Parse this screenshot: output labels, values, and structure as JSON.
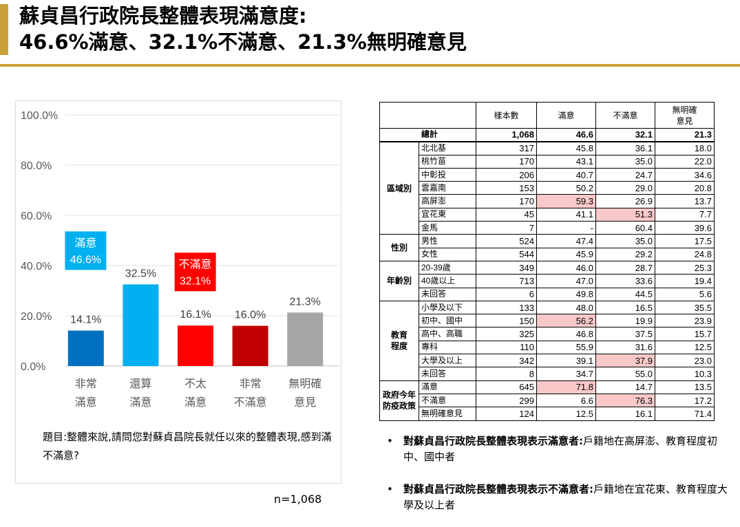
{
  "header": {
    "title_line1": "蘇貞昌行政院長整體表現滿意度:",
    "title_line2": "46.6%滿意、32.1%不滿意、21.3%無明確意見",
    "accent_color": "#c9a13b"
  },
  "chart_data": {
    "type": "bar",
    "categories": [
      [
        "非常",
        "滿意"
      ],
      [
        "還算",
        "滿意"
      ],
      [
        "不太",
        "滿意"
      ],
      [
        "非常",
        "不滿意"
      ],
      [
        "無明確",
        "意見"
      ]
    ],
    "values": [
      14.1,
      32.5,
      16.1,
      16.0,
      21.3
    ],
    "value_labels": [
      "14.1%",
      "32.5%",
      "16.1%",
      "16.0%",
      "21.3%"
    ],
    "colors": [
      "#0070c0",
      "#00b0f0",
      "#ff0000",
      "#c00000",
      "#a6a6a6"
    ],
    "ylim": [
      0,
      100
    ],
    "yticks": [
      "0.0%",
      "20.0%",
      "40.0%",
      "60.0%",
      "80.0%",
      "100.0%"
    ],
    "grid": true,
    "annotations": [
      {
        "label": "滿意",
        "value": "46.6%",
        "value_number": 46.6,
        "color": "#00b0f0"
      },
      {
        "label": "不滿意",
        "value": "32.1%",
        "value_number": 32.1,
        "color": "#ff0000"
      }
    ]
  },
  "question": "題目:整體來說,請問您對蘇貞昌院長就任以來的整體表現,感到滿不滿意?",
  "sample_note": "n=1,068",
  "table": {
    "headers": [
      "樣本數",
      "滿意",
      "不滿意",
      [
        "無明確",
        "意見"
      ]
    ],
    "total": {
      "label": "總計",
      "values": [
        "1,068",
        "46.6",
        "32.1",
        "21.3"
      ]
    },
    "highlight_color": "#f9c9c9",
    "groups": [
      {
        "name": [
          "區域別"
        ],
        "rows": [
          {
            "label": "北北基",
            "values": [
              "317",
              "45.8",
              "36.1",
              "18.0"
            ]
          },
          {
            "label": "桃竹苗",
            "values": [
              "170",
              "43.1",
              "35.0",
              "22.0"
            ]
          },
          {
            "label": "中彰投",
            "values": [
              "206",
              "40.7",
              "24.7",
              "34.6"
            ]
          },
          {
            "label": "雲嘉南",
            "values": [
              "153",
              "50.2",
              "29.0",
              "20.8"
            ]
          },
          {
            "label": "高屏澎",
            "values": [
              "170",
              "59.3",
              "26.9",
              "13.7"
            ],
            "hl": [
              1
            ]
          },
          {
            "label": "宜花東",
            "values": [
              "45",
              "41.1",
              "51.3",
              "7.7"
            ],
            "hl": [
              2
            ]
          },
          {
            "label": "金馬",
            "values": [
              "7",
              "-",
              "60.4",
              "39.6"
            ]
          }
        ]
      },
      {
        "name": [
          "性別"
        ],
        "rows": [
          {
            "label": "男性",
            "values": [
              "524",
              "47.4",
              "35.0",
              "17.5"
            ]
          },
          {
            "label": "女性",
            "values": [
              "544",
              "45.9",
              "29.2",
              "24.8"
            ]
          }
        ]
      },
      {
        "name": [
          "年齡別"
        ],
        "rows": [
          {
            "label": "20-39歲",
            "values": [
              "349",
              "46.0",
              "28.7",
              "25.3"
            ]
          },
          {
            "label": "40歲以上",
            "values": [
              "713",
              "47.0",
              "33.6",
              "19.4"
            ]
          },
          {
            "label": "未回答",
            "values": [
              "6",
              "49.8",
              "44.5",
              "5.6"
            ]
          }
        ]
      },
      {
        "name": [
          "教育",
          "程度"
        ],
        "rows": [
          {
            "label": "小學及以下",
            "values": [
              "133",
              "48.0",
              "16.5",
              "35.5"
            ]
          },
          {
            "label": "初中、國中",
            "values": [
              "150",
              "56.2",
              "19.9",
              "23.9"
            ],
            "hl": [
              1
            ]
          },
          {
            "label": "高中、高職",
            "values": [
              "325",
              "46.8",
              "37.5",
              "15.7"
            ]
          },
          {
            "label": "專科",
            "values": [
              "110",
              "55.9",
              "31.6",
              "12.5"
            ]
          },
          {
            "label": "大學及以上",
            "values": [
              "342",
              "39.1",
              "37.9",
              "23.0"
            ],
            "hl": [
              2
            ]
          },
          {
            "label": "未回答",
            "values": [
              "8",
              "34.7",
              "55.0",
              "10.3"
            ]
          }
        ]
      },
      {
        "name": [
          "政府今年",
          "防疫政策"
        ],
        "rows": [
          {
            "label": "滿意",
            "values": [
              "645",
              "71.8",
              "14.7",
              "13.5"
            ],
            "hl": [
              1
            ]
          },
          {
            "label": "不滿意",
            "values": [
              "299",
              "6.6",
              "76.3",
              "17.2"
            ],
            "hl": [
              2
            ]
          },
          {
            "label": "無明確意見",
            "values": [
              "124",
              "12.5",
              "16.1",
              "71.4"
            ]
          }
        ]
      }
    ]
  },
  "notes": [
    {
      "bullet": "•",
      "bold": "對蘇貞昌行政院長整體表現表示滿意者:",
      "text": "戶籍地在高屏澎、教育程度初中、國中者"
    },
    {
      "bullet": "•",
      "bold": "對蘇貞昌行政院長整體表現表示不滿意者:",
      "text": "戶籍地在宜花東、教育程度大學及以上者"
    }
  ]
}
